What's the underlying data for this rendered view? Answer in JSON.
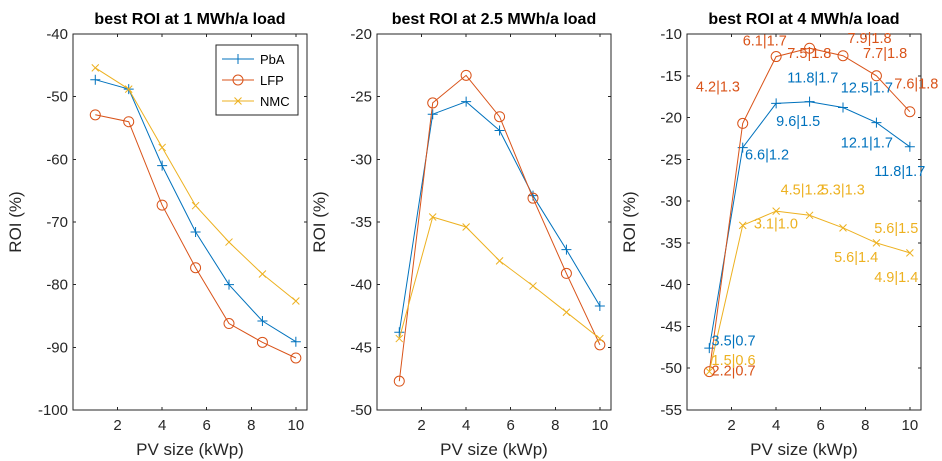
{
  "chart_data": [
    {
      "type": "line",
      "title": "best ROI at 1 MWh/a load",
      "xlabel": "PV size (kWp)",
      "ylabel": "ROI (%)",
      "xlim": [
        0,
        10.5
      ],
      "ylim": [
        -100,
        -40
      ],
      "xticks": [
        2,
        4,
        6,
        8,
        10
      ],
      "yticks": [
        -100,
        -90,
        -80,
        -70,
        -60,
        -50,
        -40
      ],
      "x": [
        1,
        2.5,
        4,
        5.5,
        7,
        8.5,
        10
      ],
      "series": [
        {
          "name": "PbA",
          "color": "#0072BD",
          "marker": "plus",
          "values": [
            -47.3,
            -48.8,
            -61.0,
            -71.6,
            -80.0,
            -85.8,
            -89.1
          ]
        },
        {
          "name": "LFP",
          "color": "#D95319",
          "marker": "circle",
          "values": [
            -52.9,
            -54.0,
            -67.3,
            -77.3,
            -86.2,
            -89.2,
            -91.7
          ]
        },
        {
          "name": "NMC",
          "color": "#EDB120",
          "marker": "cross",
          "values": [
            -45.4,
            -48.8,
            -58.1,
            -67.4,
            -73.2,
            -78.3,
            -82.6
          ]
        }
      ],
      "legend": {
        "position": "top-right",
        "entries": [
          "PbA",
          "LFP",
          "NMC"
        ]
      }
    },
    {
      "type": "line",
      "title": "best ROI at 2.5 MWh/a load",
      "xlabel": "PV size (kWp)",
      "ylabel": "ROI (%)",
      "xlim": [
        0,
        10.5
      ],
      "ylim": [
        -50,
        -20
      ],
      "xticks": [
        2,
        4,
        6,
        8,
        10
      ],
      "yticks": [
        -50,
        -45,
        -40,
        -35,
        -30,
        -25,
        -20
      ],
      "x": [
        1,
        2.5,
        4,
        5.5,
        7,
        8.5,
        10
      ],
      "series": [
        {
          "name": "PbA",
          "color": "#0072BD",
          "marker": "plus",
          "values": [
            -43.8,
            -26.4,
            -25.4,
            -27.7,
            -32.9,
            -37.2,
            -41.7
          ]
        },
        {
          "name": "LFP",
          "color": "#D95319",
          "marker": "circle",
          "values": [
            -47.7,
            -25.5,
            -23.3,
            -26.6,
            -33.1,
            -39.1,
            -44.8
          ]
        },
        {
          "name": "NMC",
          "color": "#EDB120",
          "marker": "cross",
          "values": [
            -44.3,
            -34.6,
            -35.4,
            -38.1,
            -40.1,
            -42.2,
            -44.3
          ]
        }
      ]
    },
    {
      "type": "line",
      "title": "best ROI at 4 MWh/a load",
      "xlabel": "PV size (kWp)",
      "ylabel": "ROI (%)",
      "xlim": [
        0,
        10.5
      ],
      "ylim": [
        -55,
        -10
      ],
      "xticks": [
        2,
        4,
        6,
        8,
        10
      ],
      "yticks": [
        -55,
        -50,
        -45,
        -40,
        -35,
        -30,
        -25,
        -20,
        -15,
        -10
      ],
      "x": [
        1,
        2.5,
        4,
        5.5,
        7,
        8.5,
        10
      ],
      "series": [
        {
          "name": "PbA",
          "color": "#0072BD",
          "marker": "plus",
          "values": [
            -47.6,
            -23.6,
            -18.3,
            -18.1,
            -18.8,
            -20.6,
            -23.5
          ]
        },
        {
          "name": "LFP",
          "color": "#D95319",
          "marker": "circle",
          "values": [
            -50.4,
            -20.7,
            -12.7,
            -11.7,
            -12.6,
            -15.0,
            -19.3
          ]
        },
        {
          "name": "NMC",
          "color": "#EDB120",
          "marker": "cross",
          "values": [
            -50.4,
            -32.9,
            -31.2,
            -31.7,
            -33.2,
            -35.0,
            -36.2
          ]
        }
      ],
      "annotations": [
        {
          "text": "6.1|1.7",
          "color": "#D95319",
          "x": 2.5,
          "y": -11.4
        },
        {
          "text": "4.2|1.3",
          "color": "#D95319",
          "x": 0.4,
          "y": -16.9
        },
        {
          "text": "7.5|1.8",
          "color": "#D95319",
          "x": 4.5,
          "y": -12.9
        },
        {
          "text": "7.9|1.8",
          "color": "#D95319",
          "x": 7.2,
          "y": -11.1
        },
        {
          "text": "7.7|1.8",
          "color": "#D95319",
          "x": 7.9,
          "y": -12.9
        },
        {
          "text": "7.6|1.8",
          "color": "#D95319",
          "x": 9.3,
          "y": -16.5
        },
        {
          "text": "2.2|0.7",
          "color": "#D95319",
          "x": 1.1,
          "y": -50.9
        },
        {
          "text": "11.8|1.7",
          "color": "#0072BD",
          "x": 4.5,
          "y": -15.8
        },
        {
          "text": "12.5|1.7",
          "color": "#0072BD",
          "x": 6.9,
          "y": -17.0
        },
        {
          "text": "9.6|1.5",
          "color": "#0072BD",
          "x": 4.0,
          "y": -21.0
        },
        {
          "text": "6.6|1.2",
          "color": "#0072BD",
          "x": 2.6,
          "y": -25.0
        },
        {
          "text": "12.1|1.7",
          "color": "#0072BD",
          "x": 6.9,
          "y": -23.6
        },
        {
          "text": "11.8|1.7",
          "color": "#0072BD",
          "x": 8.4,
          "y": -27.0
        },
        {
          "text": "3.5|0.7",
          "color": "#0072BD",
          "x": 1.1,
          "y": -47.3
        },
        {
          "text": "4.5|1.2",
          "color": "#EDB120",
          "x": 4.2,
          "y": -29.2
        },
        {
          "text": "5.3|1.3",
          "color": "#EDB120",
          "x": 6.0,
          "y": -29.2
        },
        {
          "text": "3.1|1.0",
          "color": "#EDB120",
          "x": 3.0,
          "y": -33.3
        },
        {
          "text": "5.6|1.5",
          "color": "#EDB120",
          "x": 8.4,
          "y": -33.8
        },
        {
          "text": "5.6|1.4",
          "color": "#EDB120",
          "x": 6.6,
          "y": -37.3
        },
        {
          "text": "4.9|1.4",
          "color": "#EDB120",
          "x": 8.4,
          "y": -39.7
        },
        {
          "text": "1.5|0.6",
          "color": "#EDB120",
          "x": 1.1,
          "y": -49.6
        }
      ]
    }
  ]
}
